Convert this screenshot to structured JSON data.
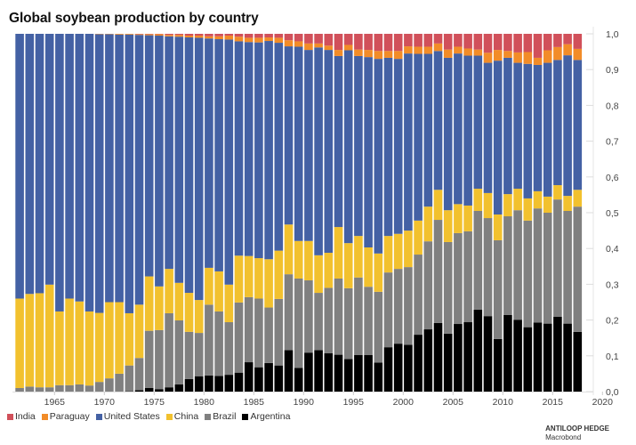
{
  "title": "Global soybean production by country",
  "credit": {
    "brand": "ANTILOOP HEDGE",
    "source": "Macrobond"
  },
  "chart_data": {
    "type": "bar",
    "stacked": true,
    "normalized": true,
    "title": "Global soybean production by country",
    "xlabel": "",
    "ylabel": "",
    "x": [
      1961,
      1962,
      1963,
      1964,
      1965,
      1966,
      1967,
      1968,
      1969,
      1970,
      1971,
      1972,
      1973,
      1974,
      1975,
      1976,
      1977,
      1978,
      1979,
      1980,
      1981,
      1982,
      1983,
      1984,
      1985,
      1986,
      1987,
      1988,
      1989,
      1990,
      1991,
      1992,
      1993,
      1994,
      1995,
      1996,
      1997,
      1998,
      1999,
      2000,
      2001,
      2002,
      2003,
      2004,
      2005,
      2006,
      2007,
      2008,
      2009,
      2010,
      2011,
      2012,
      2013,
      2014,
      2015,
      2016,
      2017
    ],
    "xlim": [
      1961,
      2020
    ],
    "xticks": [
      "1965",
      "1970",
      "1975",
      "1980",
      "1985",
      "1990",
      "1995",
      "2000",
      "2005",
      "2010",
      "2015",
      "2020"
    ],
    "ylim": [
      0,
      1
    ],
    "yticks": [
      "0,0",
      "0,1",
      "0,2",
      "0,3",
      "0,4",
      "0,5",
      "0,6",
      "0,7",
      "0,8",
      "0,9",
      "1,0"
    ],
    "y_axis_side": "right",
    "grid": false,
    "legend_position": "bottom-left",
    "series": [
      {
        "name": "Argentina",
        "color": "#000000",
        "values": [
          0,
          0,
          0,
          0,
          0,
          0,
          0,
          0,
          0,
          0,
          0,
          0.001,
          0.004,
          0.01,
          0.007,
          0.012,
          0.02,
          0.035,
          0.043,
          0.045,
          0.044,
          0.047,
          0.053,
          0.082,
          0.068,
          0.08,
          0.073,
          0.116,
          0.066,
          0.109,
          0.116,
          0.107,
          0.103,
          0.091,
          0.102,
          0.102,
          0.081,
          0.124,
          0.134,
          0.131,
          0.159,
          0.174,
          0.192,
          0.162,
          0.189,
          0.194,
          0.229,
          0.211,
          0.147,
          0.214,
          0.201,
          0.18,
          0.193,
          0.19,
          0.209,
          0.19,
          0.167
        ]
      },
      {
        "name": "Brazil",
        "color": "#808080",
        "values": [
          0.01,
          0.014,
          0.012,
          0.012,
          0.018,
          0.018,
          0.02,
          0.017,
          0.027,
          0.037,
          0.05,
          0.072,
          0.09,
          0.16,
          0.165,
          0.207,
          0.179,
          0.132,
          0.121,
          0.198,
          0.18,
          0.147,
          0.196,
          0.182,
          0.192,
          0.155,
          0.186,
          0.212,
          0.25,
          0.202,
          0.16,
          0.183,
          0.213,
          0.198,
          0.217,
          0.191,
          0.198,
          0.209,
          0.209,
          0.217,
          0.224,
          0.246,
          0.288,
          0.256,
          0.254,
          0.254,
          0.276,
          0.274,
          0.276,
          0.276,
          0.306,
          0.298,
          0.319,
          0.31,
          0.328,
          0.315,
          0.35
        ]
      },
      {
        "name": "China",
        "color": "#F2C12E",
        "values": [
          0.25,
          0.259,
          0.263,
          0.287,
          0.206,
          0.242,
          0.232,
          0.207,
          0.193,
          0.213,
          0.2,
          0.146,
          0.149,
          0.152,
          0.122,
          0.124,
          0.105,
          0.109,
          0.092,
          0.103,
          0.112,
          0.105,
          0.131,
          0.115,
          0.113,
          0.135,
          0.135,
          0.139,
          0.105,
          0.11,
          0.105,
          0.098,
          0.144,
          0.126,
          0.116,
          0.11,
          0.107,
          0.102,
          0.098,
          0.102,
          0.095,
          0.097,
          0.084,
          0.089,
          0.081,
          0.072,
          0.062,
          0.07,
          0.072,
          0.062,
          0.06,
          0.062,
          0.048,
          0.045,
          0.04,
          0.042,
          0.047
        ]
      },
      {
        "name": "United States",
        "color": "#4461A4",
        "values": [
          0.74,
          0.727,
          0.725,
          0.701,
          0.776,
          0.74,
          0.748,
          0.776,
          0.779,
          0.749,
          0.748,
          0.779,
          0.754,
          0.674,
          0.701,
          0.65,
          0.688,
          0.714,
          0.733,
          0.641,
          0.649,
          0.685,
          0.599,
          0.598,
          0.603,
          0.61,
          0.581,
          0.498,
          0.543,
          0.534,
          0.581,
          0.567,
          0.478,
          0.539,
          0.503,
          0.532,
          0.544,
          0.498,
          0.489,
          0.495,
          0.466,
          0.427,
          0.388,
          0.426,
          0.421,
          0.419,
          0.372,
          0.364,
          0.43,
          0.381,
          0.352,
          0.376,
          0.353,
          0.374,
          0.35,
          0.393,
          0.363
        ]
      },
      {
        "name": "Paraguay",
        "color": "#F28C28",
        "values": [
          0,
          0,
          0,
          0,
          0,
          0,
          0,
          0,
          0.001,
          0.001,
          0.002,
          0.002,
          0.002,
          0.003,
          0.004,
          0.004,
          0.005,
          0.005,
          0.006,
          0.006,
          0.008,
          0.011,
          0.013,
          0.012,
          0.013,
          0.01,
          0.014,
          0.017,
          0.015,
          0.018,
          0.011,
          0.012,
          0.017,
          0.015,
          0.018,
          0.02,
          0.022,
          0.019,
          0.022,
          0.02,
          0.02,
          0.02,
          0.021,
          0.023,
          0.019,
          0.02,
          0.017,
          0.028,
          0.03,
          0.019,
          0.029,
          0.033,
          0.02,
          0.035,
          0.036,
          0.031,
          0.031
        ]
      },
      {
        "name": "India",
        "color": "#D1505A",
        "values": [
          0,
          0,
          0,
          0,
          0,
          0,
          0,
          0,
          0,
          0,
          0,
          0,
          0.001,
          0.001,
          0.001,
          0.003,
          0.003,
          0.005,
          0.005,
          0.007,
          0.007,
          0.005,
          0.008,
          0.011,
          0.011,
          0.01,
          0.011,
          0.018,
          0.021,
          0.027,
          0.027,
          0.033,
          0.045,
          0.031,
          0.044,
          0.045,
          0.048,
          0.048,
          0.048,
          0.035,
          0.036,
          0.036,
          0.027,
          0.044,
          0.036,
          0.041,
          0.044,
          0.053,
          0.045,
          0.048,
          0.052,
          0.051,
          0.067,
          0.046,
          0.037,
          0.029,
          0.042
        ]
      }
    ],
    "legend": [
      "India",
      "Paraguay",
      "United States",
      "China",
      "Brazil",
      "Argentina"
    ]
  }
}
